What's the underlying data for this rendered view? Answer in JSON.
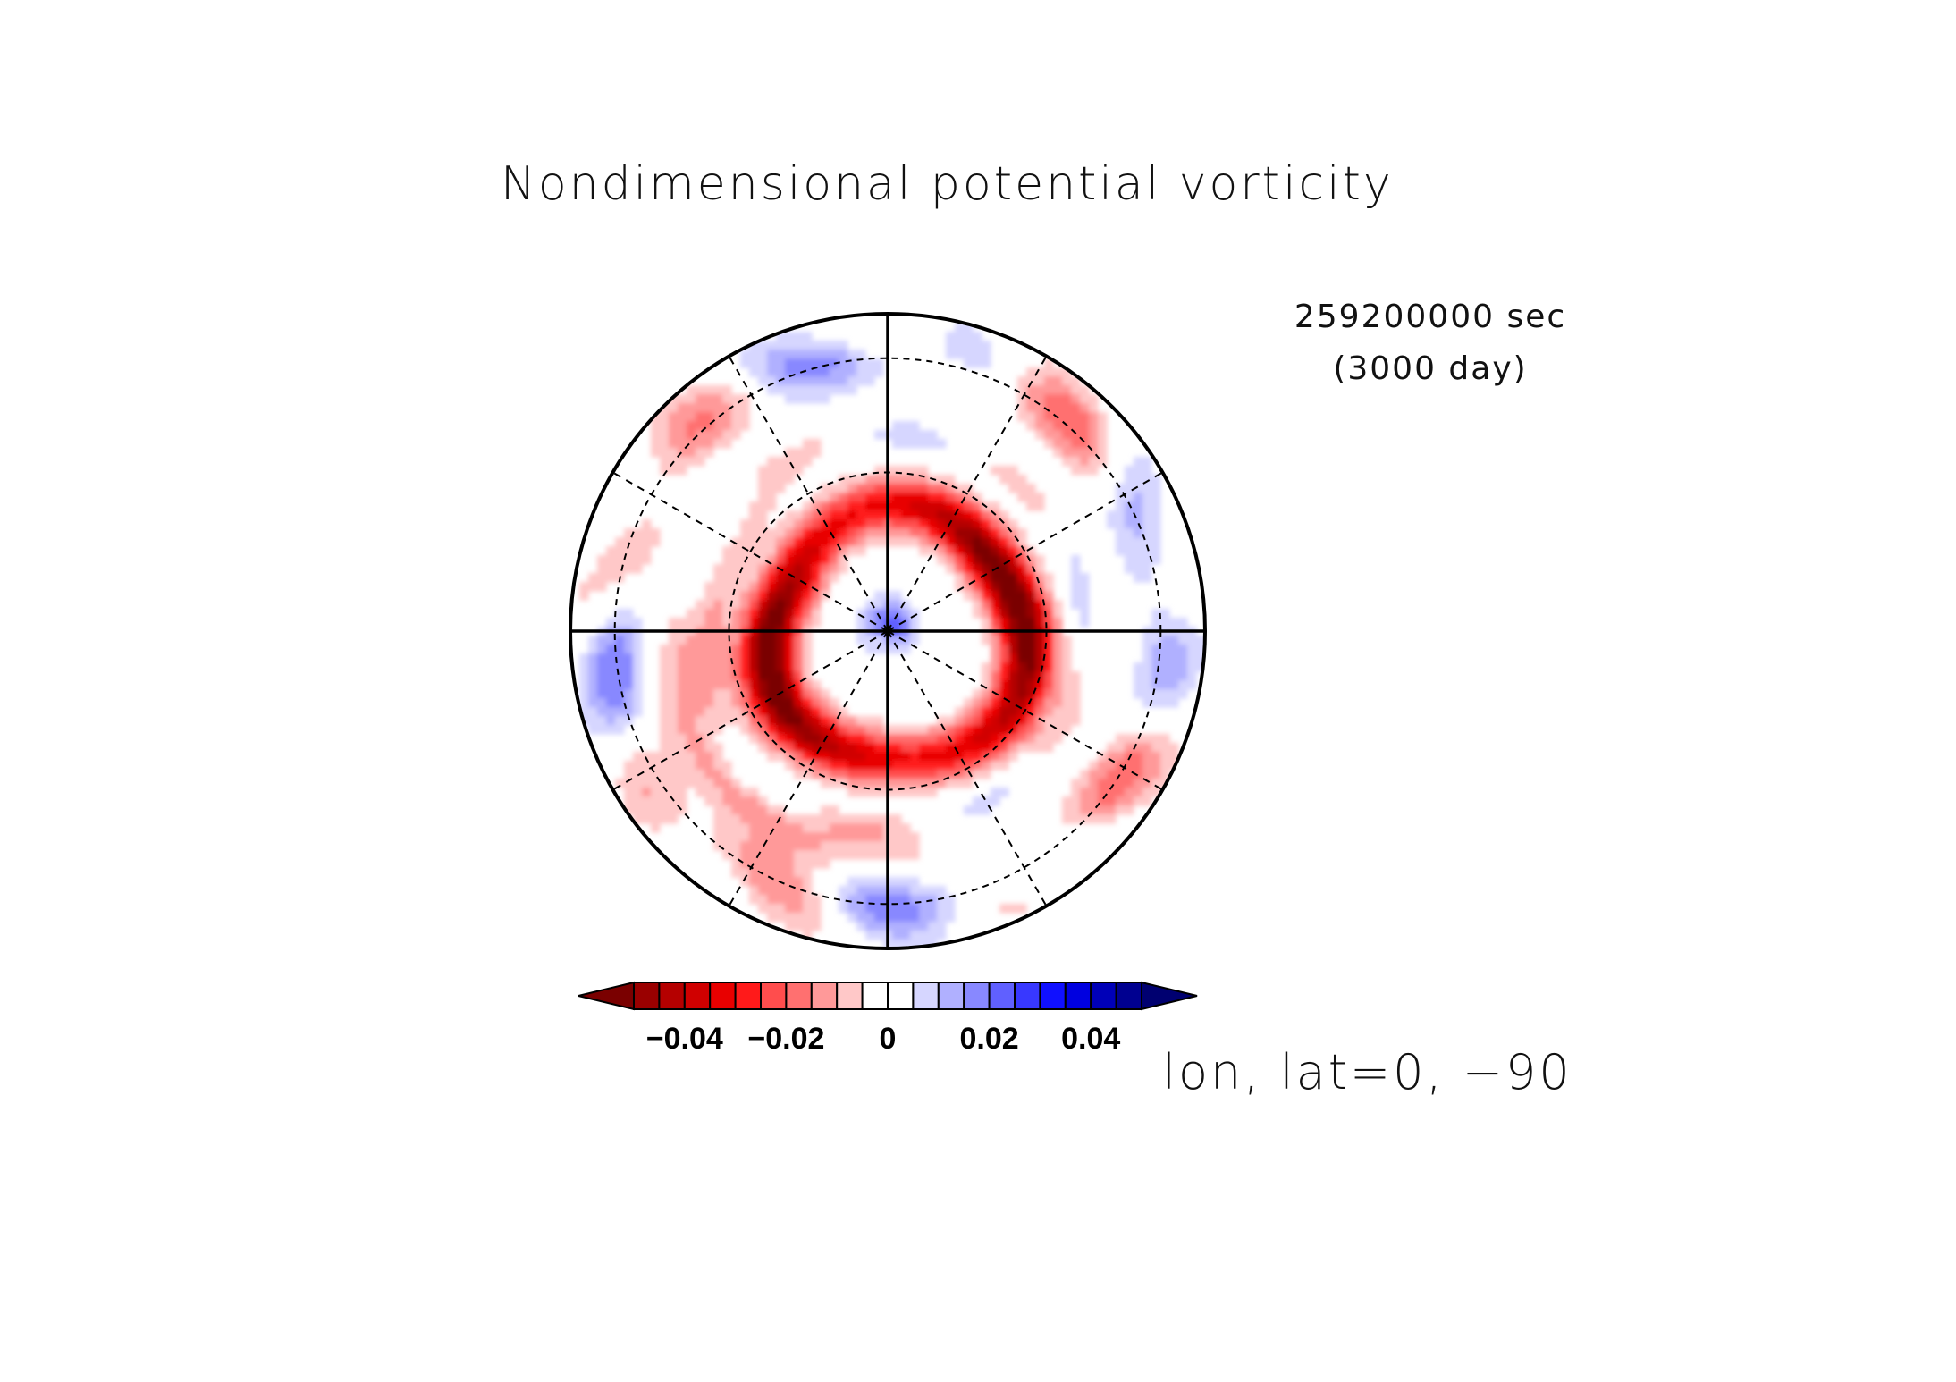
{
  "chart_data": {
    "type": "heatmap",
    "projection": "polar stereographic (south pole)",
    "title": "Nondimensional potential vorticity",
    "time_line1": "259200000 sec",
    "time_line2": "(3000 day)",
    "axis_caption": "lon, lat=0, −90",
    "colorbar": {
      "levels": [
        -0.05,
        -0.045,
        -0.04,
        -0.035,
        -0.03,
        -0.025,
        -0.02,
        -0.015,
        -0.01,
        -0.005,
        0,
        0.005,
        0.01,
        0.015,
        0.02,
        0.025,
        0.03,
        0.035,
        0.04,
        0.045,
        0.05
      ],
      "colors": [
        "#7a0000",
        "#9a0000",
        "#b50000",
        "#d00000",
        "#e80000",
        "#ff1a1a",
        "#ff4d4d",
        "#ff7070",
        "#ff9999",
        "#ffc8c8",
        "#ffffff",
        "#ffffff",
        "#d6d6ff",
        "#b0b0ff",
        "#8888ff",
        "#6060ff",
        "#3838ff",
        "#1010ff",
        "#0000e0",
        "#0000b8",
        "#000090",
        "#000070"
      ],
      "tick_values": [
        -0.04,
        -0.02,
        0,
        0.02,
        0.04
      ],
      "tick_labels": [
        "−0.04",
        "−0.02",
        "0",
        "0.02",
        "0.04"
      ],
      "extend": "both"
    },
    "field_features": [
      {
        "description": "negative PV ring",
        "radius_frac": 0.42,
        "value": -0.045
      },
      {
        "description": "positive PV core near pole",
        "radius_frac": 0.05,
        "value": 0.025
      },
      {
        "description": "weak mixed anomalies in outer ring",
        "radius_frac": 0.85,
        "value": 0.01
      }
    ],
    "grid": {
      "meridians_deg": [
        0,
        30,
        60,
        90,
        120,
        150,
        180,
        210,
        240,
        270,
        300,
        330
      ],
      "parallels_frac": [
        0.5,
        0.86
      ],
      "solid_axes": true
    }
  }
}
